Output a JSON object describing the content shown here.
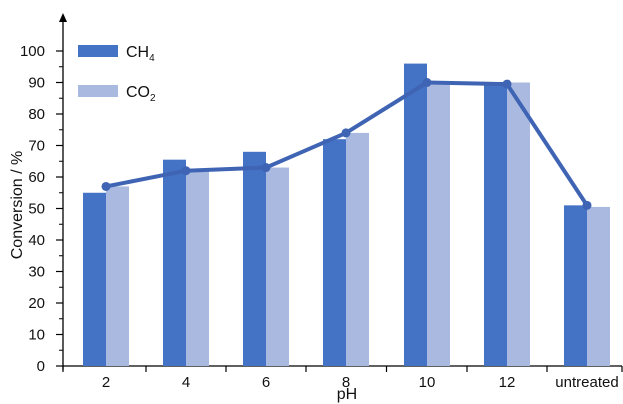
{
  "chart_data": {
    "type": "bar",
    "categories": [
      "2",
      "4",
      "6",
      "8",
      "10",
      "12",
      "untreated"
    ],
    "series": [
      {
        "name": "CH",
        "name_subscript": "4",
        "color": "#4472c4",
        "values": [
          55,
          65.5,
          68,
          72,
          96,
          89.5,
          51
        ]
      },
      {
        "name": "CO",
        "name_subscript": "2",
        "color": "#a9b9df",
        "values": [
          57,
          62,
          63,
          74,
          90,
          90,
          50.5
        ]
      }
    ],
    "line": {
      "color": "#3f64b4",
      "values": [
        57,
        62,
        63,
        74,
        90,
        89.5,
        51
      ]
    },
    "xlabel": "pH",
    "ylabel": "Conversion / %",
    "ylim": [
      0,
      100
    ],
    "yticks": [
      0,
      10,
      20,
      30,
      40,
      50,
      60,
      70,
      80,
      90,
      100
    ],
    "grid": false,
    "legend_position": "top-left"
  }
}
